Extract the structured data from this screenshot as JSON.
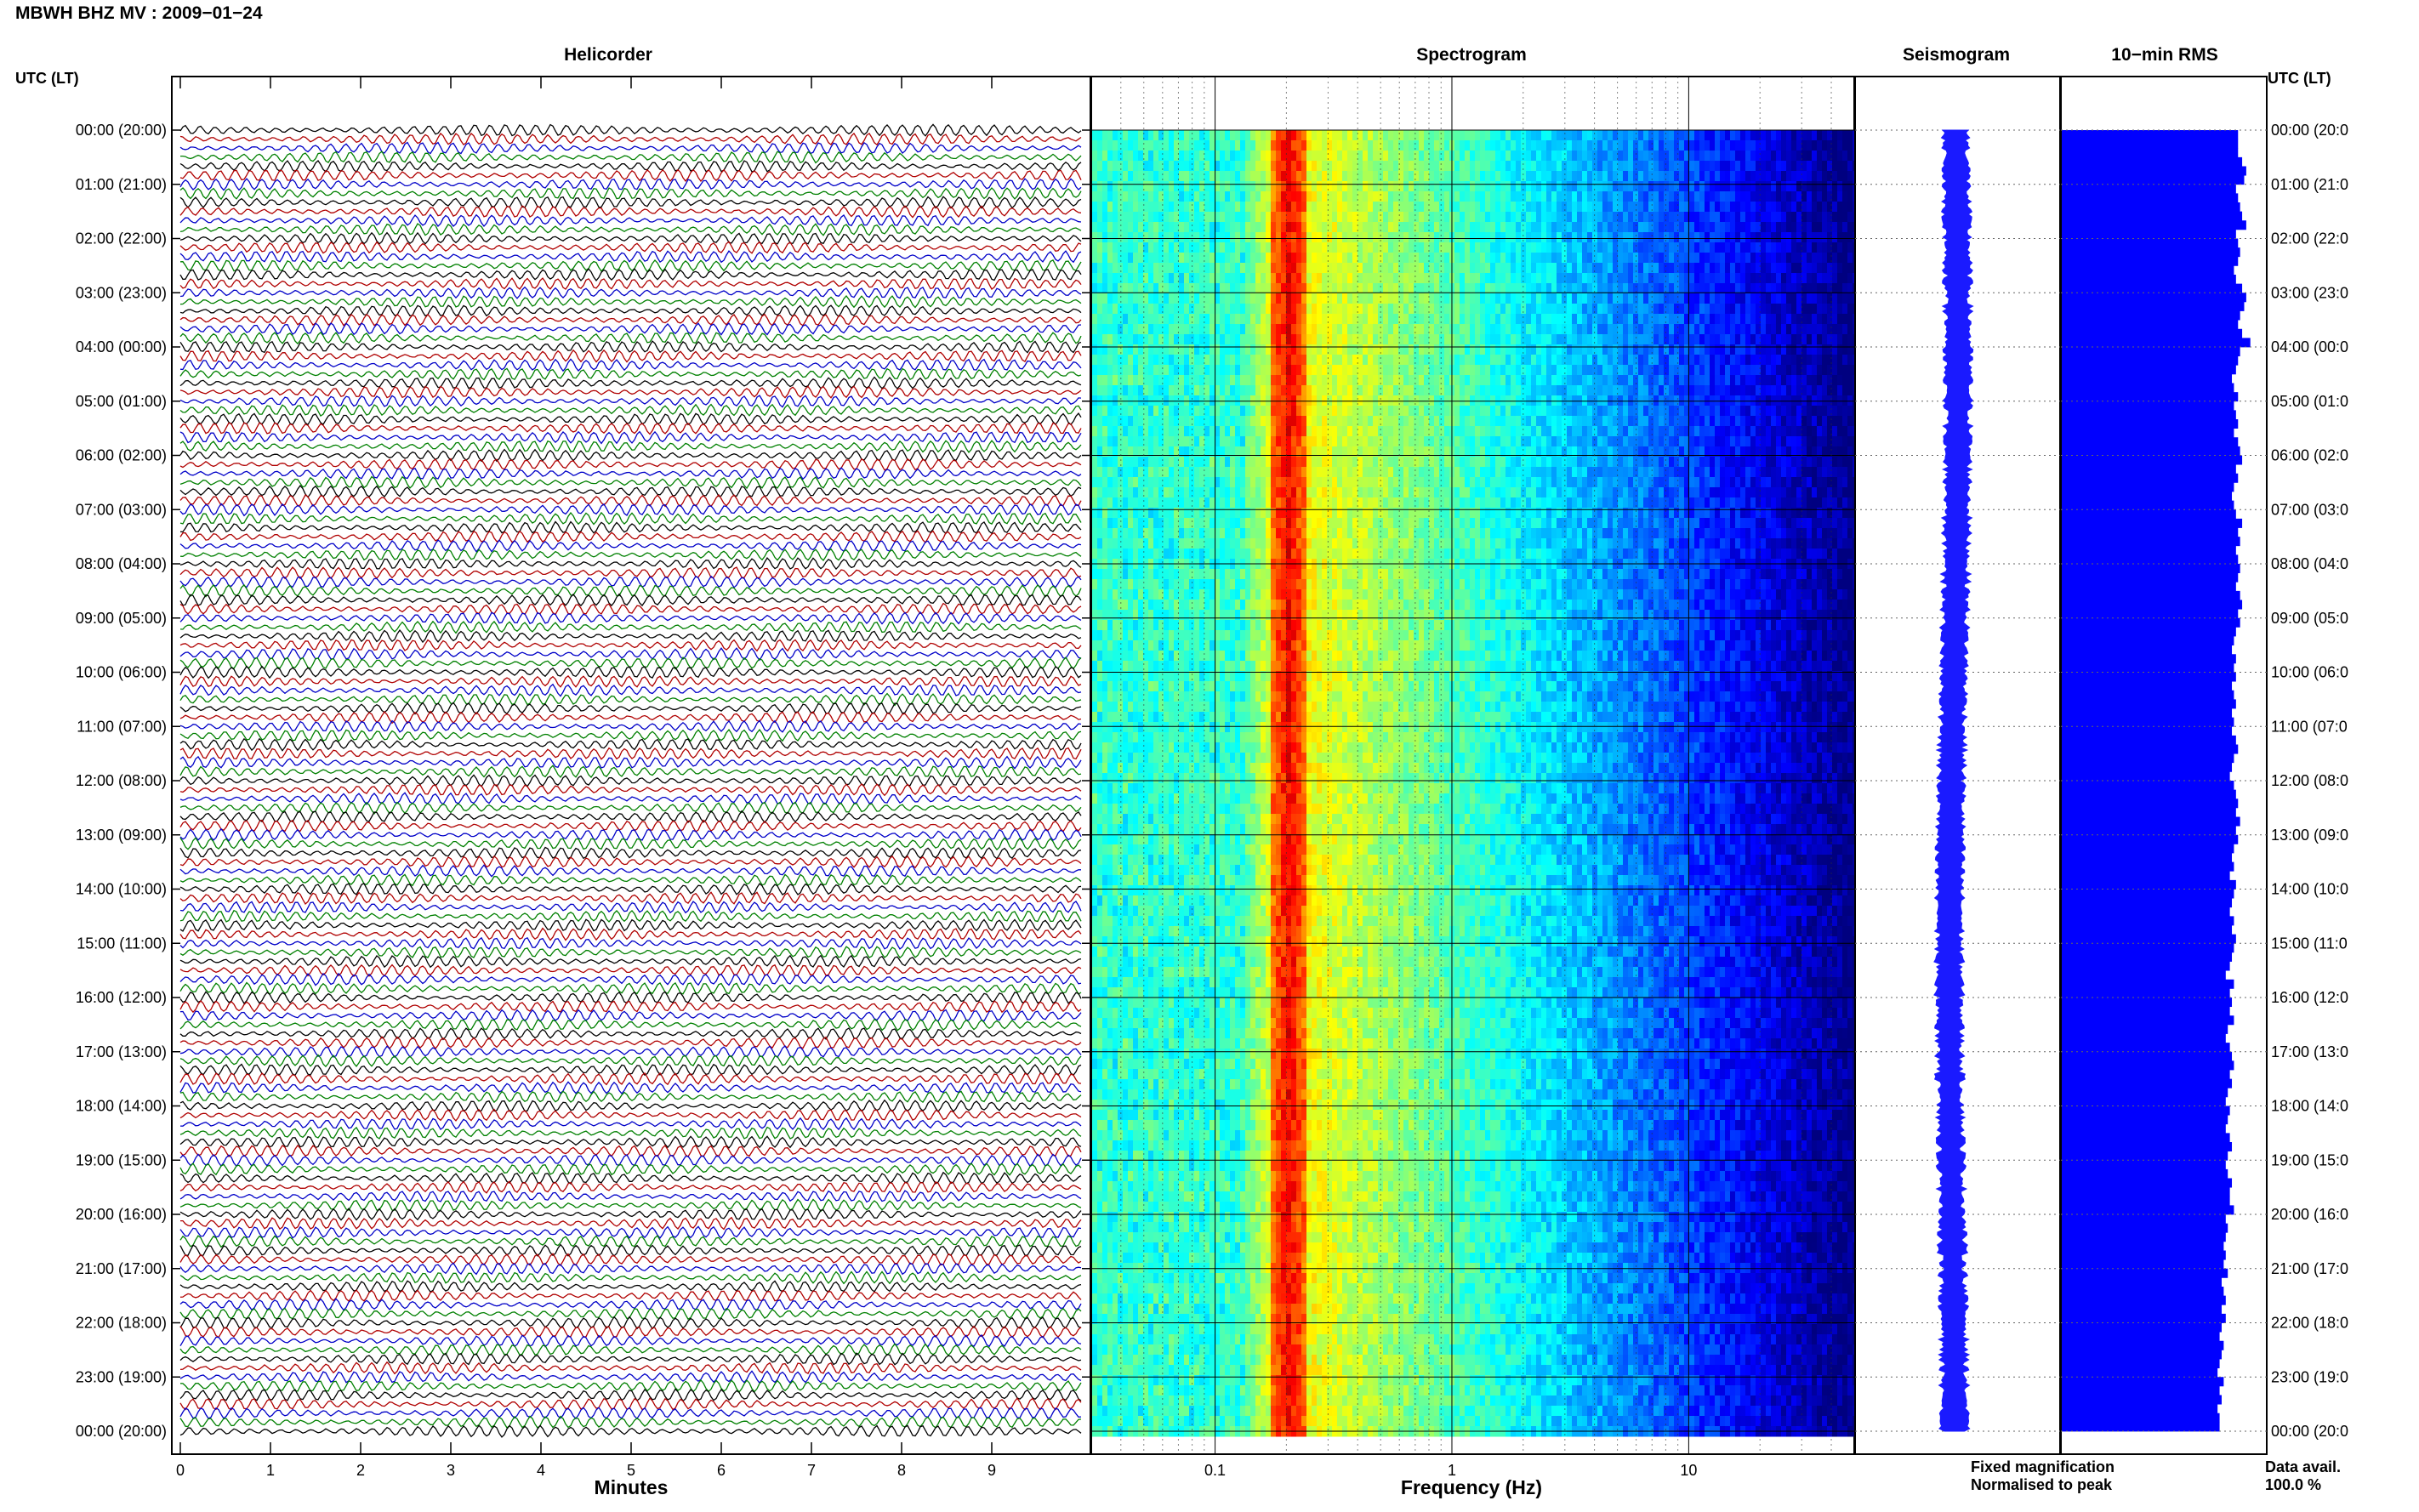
{
  "header": {
    "title": "MBWH BHZ MV : 2009−01−24",
    "time_label_left": "UTC (LT)",
    "time_label_right": "UTC (LT)"
  },
  "panels": {
    "helicorder": "Helicorder",
    "spectrogram": "Spectrogram",
    "seismogram": "Seismogram",
    "rms": "10−min RMS"
  },
  "time_rows_left": [
    "00:00 (20:00)",
    "01:00 (21:00)",
    "02:00 (22:00)",
    "03:00 (23:00)",
    "04:00 (00:00)",
    "05:00 (01:00)",
    "06:00 (02:00)",
    "07:00 (03:00)",
    "08:00 (04:00)",
    "09:00 (05:00)",
    "10:00 (06:00)",
    "11:00 (07:00)",
    "12:00 (08:00)",
    "13:00 (09:00)",
    "14:00 (10:00)",
    "15:00 (11:00)",
    "16:00 (12:00)",
    "17:00 (13:00)",
    "18:00 (14:00)",
    "19:00 (15:00)",
    "20:00 (16:00)",
    "21:00 (17:00)",
    "22:00 (18:00)",
    "23:00 (19:00)",
    "00:00 (20:00)"
  ],
  "time_rows_right": [
    "00:00 (20:0",
    "01:00 (21:0",
    "02:00 (22:0",
    "03:00 (23:0",
    "04:00 (00:0",
    "05:00 (01:0",
    "06:00 (02:0",
    "07:00 (03:0",
    "08:00 (04:0",
    "09:00 (05:0",
    "10:00 (06:0",
    "11:00 (07:0",
    "12:00 (08:0",
    "13:00 (09:0",
    "14:00 (10:0",
    "15:00 (11:0",
    "16:00 (12:0",
    "17:00 (13:0",
    "18:00 (14:0",
    "19:00 (15:0",
    "20:00 (16:0",
    "21:00 (17:0",
    "22:00 (18:0",
    "23:00 (19:0",
    "00:00 (20:0"
  ],
  "footer": {
    "fixed_magnification": "Fixed magnification",
    "normalised_to_peak": "Normalised to peak",
    "data_avail_label": "Data avail.",
    "data_avail_value": "100.0 %"
  },
  "colors": {
    "trace_cycle": [
      "#000000",
      "#b00000",
      "#0000c8",
      "#008000"
    ],
    "seismogram": "#1a1aff",
    "rms": "#0000ff",
    "fixed_magnification": "#0000ff",
    "normalised_to_peak": "#ff0000"
  },
  "chart_data": [
    {
      "type": "line",
      "name": "helicorder",
      "title": "Helicorder",
      "xlabel": "Minutes",
      "x_ticks": [
        0,
        1,
        2,
        3,
        4,
        5,
        6,
        7,
        8,
        9
      ],
      "xlim": [
        0,
        10
      ],
      "rows": 144,
      "row_minutes": 10,
      "trace_color_cycle": [
        "black",
        "red",
        "blue",
        "green"
      ]
    },
    {
      "type": "heatmap",
      "name": "spectrogram",
      "title": "Spectrogram",
      "xlabel": "Frequency (Hz)",
      "x_scale": "log",
      "x_ticks": [
        0.1,
        1,
        10
      ],
      "x_tick_labels": [
        "0.1",
        "1",
        "10"
      ],
      "xlim": [
        0.03,
        50
      ],
      "peak_frequency_hz": 0.2,
      "colormap": "jet"
    },
    {
      "type": "line",
      "name": "seismogram",
      "title": "Seismogram"
    },
    {
      "type": "bar",
      "name": "rms",
      "title": "10−min RMS",
      "orientation": "horizontal",
      "values": [
        0.86,
        0.86,
        0.86,
        0.88,
        0.9,
        0.89,
        0.85,
        0.86,
        0.87,
        0.88,
        0.9,
        0.85,
        0.86,
        0.87,
        0.86,
        0.84,
        0.85,
        0.88,
        0.9,
        0.89,
        0.87,
        0.86,
        0.88,
        0.92,
        0.87,
        0.86,
        0.85,
        0.83,
        0.84,
        0.86,
        0.84,
        0.85,
        0.86,
        0.84,
        0.86,
        0.87,
        0.88,
        0.85,
        0.86,
        0.84,
        0.83,
        0.84,
        0.85,
        0.88,
        0.86,
        0.87,
        0.85,
        0.86,
        0.87,
        0.86,
        0.85,
        0.87,
        0.88,
        0.86,
        0.87,
        0.85,
        0.84,
        0.83,
        0.85,
        0.84,
        0.85,
        0.83,
        0.84,
        0.85,
        0.83,
        0.84,
        0.83,
        0.85,
        0.86,
        0.84,
        0.83,
        0.82,
        0.84,
        0.85,
        0.86,
        0.85,
        0.87,
        0.85,
        0.86,
        0.84,
        0.83,
        0.84,
        0.82,
        0.85,
        0.84,
        0.83,
        0.82,
        0.84,
        0.83,
        0.85,
        0.84,
        0.83,
        0.82,
        0.8,
        0.84,
        0.82,
        0.83,
        0.82,
        0.84,
        0.81,
        0.8,
        0.82,
        0.83,
        0.84,
        0.82,
        0.83,
        0.81,
        0.8,
        0.82,
        0.81,
        0.8,
        0.82,
        0.83,
        0.81,
        0.8,
        0.81,
        0.83,
        0.82,
        0.82,
        0.84,
        0.8,
        0.81,
        0.8,
        0.79,
        0.8,
        0.79,
        0.81,
        0.78,
        0.79,
        0.8,
        0.78,
        0.8,
        0.78,
        0.77,
        0.79,
        0.78,
        0.77,
        0.76,
        0.79,
        0.77,
        0.78,
        0.76,
        0.77,
        0.77
      ]
    }
  ]
}
